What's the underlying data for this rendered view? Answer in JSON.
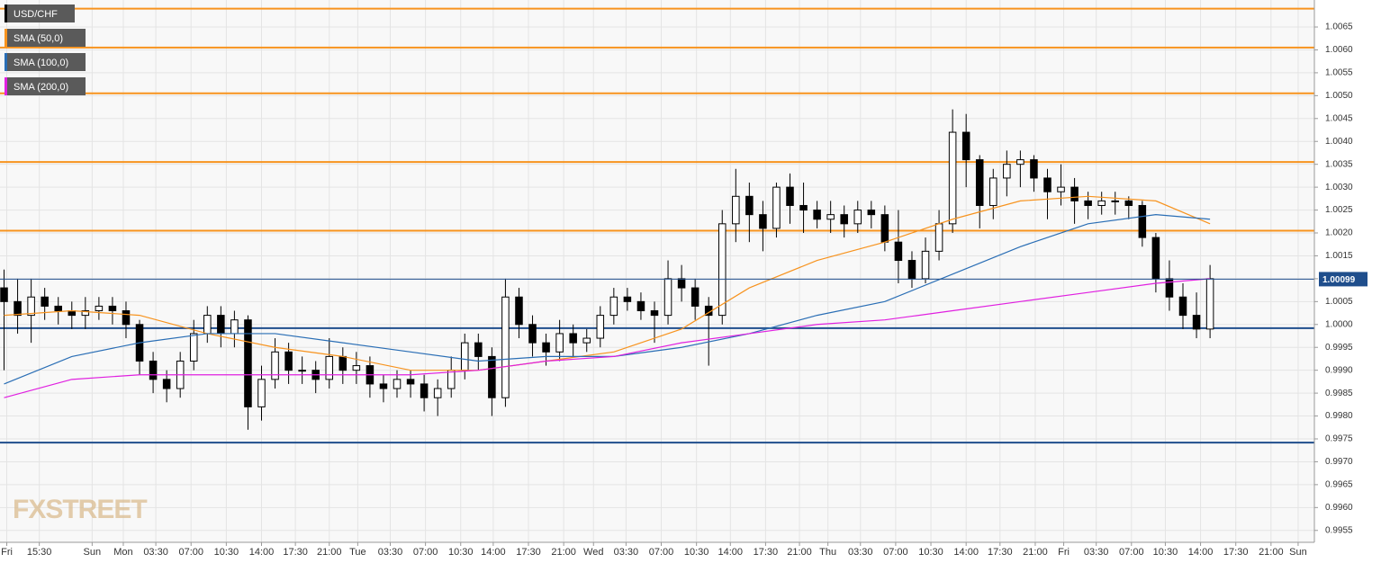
{
  "chart_data": {
    "type": "candlestick",
    "name": "USD/CHF",
    "watermark": "FXSTREET",
    "x": [
      0,
      1,
      2,
      3,
      4,
      5,
      6,
      7,
      8,
      9,
      10,
      11,
      12,
      13,
      14,
      15,
      16,
      17,
      18,
      19,
      20,
      21,
      22,
      23,
      24,
      25,
      26,
      27,
      28,
      29,
      30,
      31,
      32,
      33,
      34,
      35,
      36,
      37,
      38,
      39,
      40,
      41,
      42,
      43,
      44,
      45,
      46,
      47,
      48,
      49,
      50,
      51,
      52,
      53,
      54,
      55,
      56,
      57,
      58,
      59,
      60,
      61,
      62,
      63,
      64,
      65,
      66,
      67,
      68,
      69,
      70,
      71,
      72,
      73,
      74,
      75,
      76,
      77,
      78,
      79,
      80,
      81,
      82,
      83,
      84,
      85,
      86,
      87,
      88,
      89
    ],
    "open": [
      1.0008,
      1.0005,
      1.0002,
      1.0006,
      1.0004,
      1.0003,
      1.0002,
      1.0003,
      1.0004,
      1.0003,
      1.0,
      0.9992,
      0.9988,
      0.9986,
      0.9992,
      0.9998,
      1.0002,
      0.9998,
      1.0001,
      0.9982,
      0.9988,
      0.9994,
      0.999,
      0.999,
      0.9988,
      0.9993,
      0.999,
      0.9991,
      0.9987,
      0.9986,
      0.9988,
      0.9987,
      0.9984,
      0.9986,
      0.999,
      0.9996,
      0.9993,
      0.9984,
      1.0006,
      1.0,
      0.9996,
      0.9994,
      0.9998,
      0.9996,
      0.9997,
      1.0002,
      1.0006,
      1.0005,
      1.0003,
      1.0002,
      1.001,
      1.0008,
      1.0004,
      1.0002,
      1.0022,
      1.0028,
      1.0024,
      1.0021,
      1.003,
      1.0026,
      1.0025,
      1.0023,
      1.0024,
      1.0022,
      1.0025,
      1.0024,
      1.0018,
      1.0014,
      1.001,
      1.0016,
      1.0022,
      1.0042,
      1.0036,
      1.0026,
      1.0032,
      1.0035,
      1.0036,
      1.0032,
      1.0029,
      1.003,
      1.0027,
      1.0026,
      1.0027,
      1.0027,
      1.0026,
      1.0019,
      1.001,
      1.0006,
      1.0002,
      0.9999
    ],
    "high": [
      1.0012,
      1.001,
      1.001,
      1.0008,
      1.0006,
      1.0005,
      1.0006,
      1.0006,
      1.0006,
      1.0005,
      1.0001,
      0.9994,
      0.999,
      0.9994,
      1.0001,
      1.0004,
      1.0004,
      1.0003,
      1.0002,
      0.9991,
      0.9997,
      0.9996,
      0.9993,
      0.9992,
      0.9997,
      0.9995,
      0.9994,
      0.9993,
      0.9989,
      0.999,
      0.999,
      0.9989,
      0.9988,
      0.9993,
      0.9998,
      0.9998,
      0.9995,
      1.001,
      1.0008,
      1.0002,
      0.9998,
      1.0001,
      1.0,
      0.9999,
      1.0004,
      1.0008,
      1.0008,
      1.0007,
      1.0005,
      1.0014,
      1.0013,
      1.001,
      1.0006,
      1.0025,
      1.0034,
      1.0031,
      1.0027,
      1.0031,
      1.0033,
      1.0031,
      1.0027,
      1.0027,
      1.0026,
      1.0027,
      1.0027,
      1.0026,
      1.0025,
      1.0016,
      1.0019,
      1.0025,
      1.0047,
      1.0046,
      1.0037,
      1.0034,
      1.0038,
      1.0038,
      1.0037,
      1.0034,
      1.0035,
      1.0032,
      1.0029,
      1.0029,
      1.0029,
      1.0028,
      1.0027,
      1.002,
      1.0014,
      1.0009,
      1.0007,
      1.0013
    ],
    "low": [
      0.999,
      0.9998,
      0.9996,
      1.0001,
      1.0,
      0.9999,
      0.9999,
      1.0001,
      1.0,
      0.9997,
      0.9989,
      0.9985,
      0.9983,
      0.9984,
      0.999,
      0.9996,
      0.9995,
      0.9995,
      0.9977,
      0.9979,
      0.9986,
      0.9987,
      0.9987,
      0.9985,
      0.9986,
      0.9987,
      0.9987,
      0.9984,
      0.9983,
      0.9984,
      0.9984,
      0.9981,
      0.998,
      0.9984,
      0.9988,
      0.999,
      0.998,
      0.9982,
      0.9997,
      0.9993,
      0.9991,
      0.9992,
      0.9993,
      0.9994,
      0.9995,
      1.0,
      1.0003,
      1.0001,
      0.9996,
      1.0,
      1.0005,
      1.0001,
      0.9991,
      1.0,
      1.0018,
      1.0018,
      1.0016,
      1.0019,
      1.0022,
      1.002,
      1.0021,
      1.002,
      1.0019,
      1.002,
      1.0021,
      1.0016,
      1.0009,
      1.0008,
      1.0009,
      1.0014,
      1.002,
      1.003,
      1.0021,
      1.0023,
      1.0028,
      1.003,
      1.0029,
      1.0023,
      1.0026,
      1.0022,
      1.0023,
      1.0024,
      1.0024,
      1.0023,
      1.0017,
      1.0007,
      1.0003,
      0.9999,
      0.9997,
      0.9997
    ],
    "close": [
      1.0005,
      1.0002,
      1.0006,
      1.0004,
      1.0003,
      1.0002,
      1.0003,
      1.0004,
      1.0003,
      1.0,
      0.9992,
      0.9988,
      0.9986,
      0.9992,
      0.9998,
      1.0002,
      0.9998,
      1.0001,
      0.9982,
      0.9988,
      0.9994,
      0.999,
      0.999,
      0.9988,
      0.9993,
      0.999,
      0.9991,
      0.9987,
      0.9986,
      0.9988,
      0.9987,
      0.9984,
      0.9986,
      0.999,
      0.9996,
      0.9993,
      0.9984,
      1.0006,
      1.0,
      0.9996,
      0.9994,
      0.9998,
      0.9996,
      0.9997,
      1.0002,
      1.0006,
      1.0005,
      1.0003,
      1.0002,
      1.001,
      1.0008,
      1.0004,
      1.0002,
      1.0022,
      1.0028,
      1.0024,
      1.0021,
      1.003,
      1.0026,
      1.0025,
      1.0023,
      1.0024,
      1.0022,
      1.0025,
      1.0024,
      1.0018,
      1.0014,
      1.001,
      1.0016,
      1.0022,
      1.0042,
      1.0036,
      1.0026,
      1.0032,
      1.0035,
      1.0036,
      1.0032,
      1.0029,
      1.003,
      1.0027,
      1.0026,
      1.0027,
      1.0027,
      1.0026,
      1.0019,
      1.001,
      1.0006,
      1.0002,
      0.9999,
      1.001
    ],
    "overlays": [
      {
        "name": "SMA (50,0)",
        "color": "#f7931e",
        "x": [
          0,
          5,
          10,
          15,
          20,
          25,
          30,
          35,
          40,
          45,
          50,
          55,
          60,
          65,
          70,
          75,
          80,
          85,
          89
        ],
        "values": [
          1.0002,
          1.0003,
          1.0002,
          0.9998,
          0.9995,
          0.9993,
          0.999,
          0.999,
          0.9992,
          0.9994,
          0.9999,
          1.0008,
          1.0014,
          1.0018,
          1.0023,
          1.0027,
          1.0028,
          1.0027,
          1.0022
        ]
      },
      {
        "name": "SMA (100,0)",
        "color": "#2a6eb5",
        "x": [
          0,
          5,
          10,
          15,
          20,
          25,
          30,
          35,
          40,
          45,
          50,
          55,
          60,
          65,
          70,
          75,
          80,
          85,
          89
        ],
        "values": [
          0.9987,
          0.9993,
          0.9996,
          0.9998,
          0.9998,
          0.9996,
          0.9994,
          0.9992,
          0.9993,
          0.9993,
          0.9995,
          0.9998,
          1.0002,
          1.0005,
          1.0011,
          1.0017,
          1.0022,
          1.0024,
          1.0023
        ]
      },
      {
        "name": "SMA (200,0)",
        "color": "#e020e0",
        "x": [
          0,
          5,
          10,
          15,
          20,
          25,
          30,
          35,
          40,
          45,
          50,
          55,
          60,
          65,
          70,
          75,
          80,
          85,
          89
        ],
        "values": [
          0.9984,
          0.9988,
          0.9989,
          0.9989,
          0.9989,
          0.9989,
          0.9989,
          0.999,
          0.9992,
          0.9993,
          0.9996,
          0.9998,
          1.0,
          1.0001,
          1.0003,
          1.0005,
          1.0007,
          1.0009,
          1.001
        ]
      }
    ],
    "hlines": [
      {
        "value": 1.0069,
        "color": "#f7931e"
      },
      {
        "value": 1.00605,
        "color": "#f7931e"
      },
      {
        "value": 1.00505,
        "color": "#f7931e"
      },
      {
        "value": 1.00355,
        "color": "#f7931e"
      },
      {
        "value": 1.00205,
        "color": "#f7931e"
      },
      {
        "value": 0.99992,
        "color": "#1f4e8c"
      },
      {
        "value": 0.99742,
        "color": "#1f4e8c"
      }
    ],
    "last_price": 1.00099,
    "ylim": [
      0.99524,
      1.00709
    ],
    "yticks": [
      {
        "value": 0.9955,
        "label": "0.9955"
      },
      {
        "value": 0.996,
        "label": "0.9960"
      },
      {
        "value": 0.9965,
        "label": "0.9965"
      },
      {
        "value": 0.997,
        "label": "0.9970"
      },
      {
        "value": 0.9975,
        "label": "0.9975"
      },
      {
        "value": 0.998,
        "label": "0.9980"
      },
      {
        "value": 0.9985,
        "label": "0.9985"
      },
      {
        "value": 0.999,
        "label": "0.9990"
      },
      {
        "value": 0.9995,
        "label": "0.9995"
      },
      {
        "value": 1.0,
        "label": "1.0000"
      },
      {
        "value": 1.0005,
        "label": "1.0005"
      },
      {
        "value": 1.001,
        "label": "1.0010"
      },
      {
        "value": 1.0015,
        "label": "1.0015"
      },
      {
        "value": 1.002,
        "label": "1.0020"
      },
      {
        "value": 1.0025,
        "label": "1.0025"
      },
      {
        "value": 1.003,
        "label": "1.0030"
      },
      {
        "value": 1.0035,
        "label": "1.0035"
      },
      {
        "value": 1.004,
        "label": "1.0040"
      },
      {
        "value": 1.0045,
        "label": "1.0045"
      },
      {
        "value": 1.005,
        "label": "1.0050"
      },
      {
        "value": 1.0055,
        "label": "1.0055"
      },
      {
        "value": 1.006,
        "label": "1.0060"
      },
      {
        "value": 1.0065,
        "label": "1.0065"
      }
    ],
    "xlim": [
      -0.3,
      96.7
    ],
    "xticks": [
      {
        "value": 0.2,
        "label": "Fri"
      },
      {
        "value": 2.6,
        "label": "15:30"
      },
      {
        "value": 6.5,
        "label": "Sun"
      },
      {
        "value": 8.8,
        "label": "Mon"
      },
      {
        "value": 11.2,
        "label": "03:30"
      },
      {
        "value": 13.8,
        "label": "07:00"
      },
      {
        "value": 16.4,
        "label": "10:30"
      },
      {
        "value": 19.0,
        "label": "14:00"
      },
      {
        "value": 21.5,
        "label": "17:30"
      },
      {
        "value": 24.0,
        "label": "21:00"
      },
      {
        "value": 26.1,
        "label": "Tue"
      },
      {
        "value": 28.5,
        "label": "03:30"
      },
      {
        "value": 31.1,
        "label": "07:00"
      },
      {
        "value": 33.7,
        "label": "10:30"
      },
      {
        "value": 36.1,
        "label": "14:00"
      },
      {
        "value": 38.7,
        "label": "17:30"
      },
      {
        "value": 41.3,
        "label": "21:00"
      },
      {
        "value": 43.5,
        "label": "Wed"
      },
      {
        "value": 45.9,
        "label": "03:30"
      },
      {
        "value": 48.5,
        "label": "07:00"
      },
      {
        "value": 51.1,
        "label": "10:30"
      },
      {
        "value": 53.6,
        "label": "14:00"
      },
      {
        "value": 56.2,
        "label": "17:30"
      },
      {
        "value": 58.7,
        "label": "21:00"
      },
      {
        "value": 60.8,
        "label": "Thu"
      },
      {
        "value": 63.2,
        "label": "03:30"
      },
      {
        "value": 65.8,
        "label": "07:00"
      },
      {
        "value": 68.4,
        "label": "10:30"
      },
      {
        "value": 71.0,
        "label": "14:00"
      },
      {
        "value": 73.5,
        "label": "17:30"
      },
      {
        "value": 76.1,
        "label": "21:00"
      },
      {
        "value": 78.2,
        "label": "Fri"
      },
      {
        "value": 80.6,
        "label": "03:30"
      },
      {
        "value": 83.2,
        "label": "07:00"
      },
      {
        "value": 85.7,
        "label": "10:30"
      },
      {
        "value": 88.3,
        "label": "14:00"
      },
      {
        "value": 90.9,
        "label": "17:30"
      },
      {
        "value": 93.5,
        "label": "21:00"
      },
      {
        "value": 95.5,
        "label": "Sun"
      }
    ],
    "grid": true
  }
}
